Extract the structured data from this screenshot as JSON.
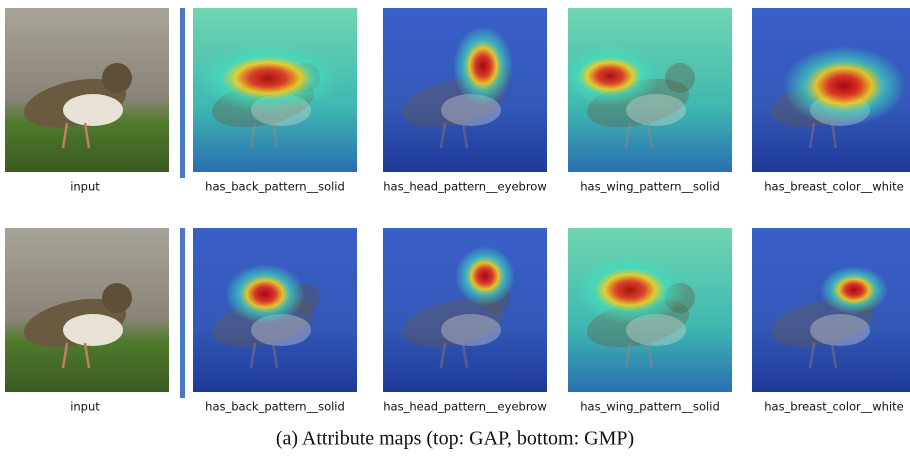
{
  "rows": [
    {
      "labels": [
        "input",
        "has_back_pattern__solid",
        "has_head_pattern__eyebrow",
        "has_wing_pattern__solid",
        "has_breast_color__white"
      ]
    },
    {
      "labels": [
        "input",
        "has_back_pattern__solid",
        "has_head_pattern__eyebrow",
        "has_wing_pattern__solid",
        "has_breast_color__white"
      ]
    }
  ],
  "caption": "(a) Attribute maps (top: GAP, bottom: GMP)"
}
